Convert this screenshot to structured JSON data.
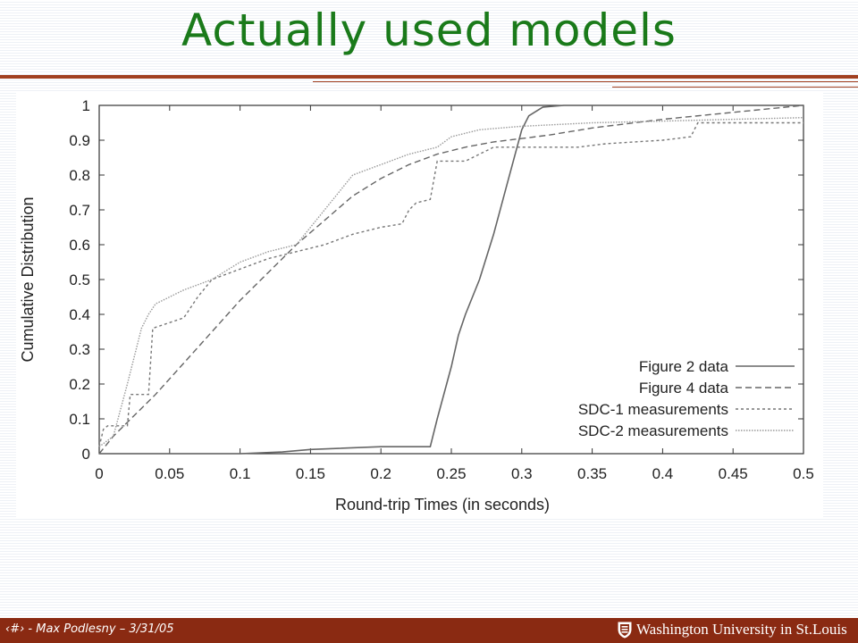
{
  "slide": {
    "title": "Actually used models",
    "footer_left": "‹#› - Max Podlesny – 3/31/05",
    "footer_right": "Washington University in St.Louis",
    "colors": {
      "title": "#1a7a1a",
      "accent_bar": "#8a2a12",
      "rule": "#a14020"
    }
  },
  "chart_data": {
    "type": "line",
    "xlabel": "Round-trip Times (in seconds)",
    "ylabel": "Cumulative Distribution",
    "xlim": [
      0,
      0.5
    ],
    "ylim": [
      0,
      1
    ],
    "xticks": [
      "0",
      "0.05",
      "0.1",
      "0.15",
      "0.2",
      "0.25",
      "0.3",
      "0.35",
      "0.4",
      "0.45",
      "0.5"
    ],
    "yticks": [
      "0",
      "0.1",
      "0.2",
      "0.3",
      "0.4",
      "0.5",
      "0.6",
      "0.7",
      "0.8",
      "0.9",
      "1"
    ],
    "grid": false,
    "legend_position": "bottom-right",
    "series": [
      {
        "name": "Figure 2 data",
        "style": "solid",
        "color": "#666666",
        "x": [
          0,
          0.05,
          0.1,
          0.13,
          0.15,
          0.2,
          0.235,
          0.24,
          0.25,
          0.255,
          0.26,
          0.27,
          0.28,
          0.29,
          0.3,
          0.305,
          0.315,
          0.33,
          0.4,
          0.5
        ],
        "y": [
          0,
          0,
          0,
          0.005,
          0.012,
          0.02,
          0.02,
          0.1,
          0.25,
          0.34,
          0.4,
          0.5,
          0.63,
          0.78,
          0.93,
          0.97,
          0.995,
          1.0,
          1.0,
          1.0
        ]
      },
      {
        "name": "Figure 4 data",
        "style": "dashed",
        "color": "#666666",
        "x": [
          0,
          0.01,
          0.02,
          0.04,
          0.06,
          0.08,
          0.1,
          0.12,
          0.14,
          0.16,
          0.18,
          0.2,
          0.22,
          0.24,
          0.26,
          0.28,
          0.3,
          0.32,
          0.35,
          0.4,
          0.45,
          0.5
        ],
        "y": [
          0,
          0.05,
          0.09,
          0.17,
          0.26,
          0.35,
          0.44,
          0.52,
          0.6,
          0.67,
          0.74,
          0.79,
          0.83,
          0.86,
          0.88,
          0.895,
          0.905,
          0.915,
          0.935,
          0.96,
          0.98,
          1.0
        ]
      },
      {
        "name": "SDC-1 measurements",
        "style": "dotted-coarse",
        "color": "#777777",
        "x": [
          0,
          0.003,
          0.006,
          0.02,
          0.022,
          0.035,
          0.038,
          0.06,
          0.07,
          0.08,
          0.1,
          0.12,
          0.14,
          0.16,
          0.18,
          0.2,
          0.215,
          0.22,
          0.225,
          0.235,
          0.24,
          0.26,
          0.27,
          0.28,
          0.3,
          0.34,
          0.36,
          0.4,
          0.42,
          0.425,
          0.5
        ],
        "y": [
          0.02,
          0.07,
          0.08,
          0.08,
          0.17,
          0.17,
          0.36,
          0.39,
          0.45,
          0.5,
          0.53,
          0.56,
          0.58,
          0.6,
          0.63,
          0.65,
          0.66,
          0.7,
          0.72,
          0.73,
          0.84,
          0.84,
          0.86,
          0.88,
          0.88,
          0.88,
          0.89,
          0.9,
          0.91,
          0.95,
          0.95
        ]
      },
      {
        "name": "SDC-2 measurements",
        "style": "dotted-fine",
        "color": "#999999",
        "x": [
          0,
          0.01,
          0.02,
          0.03,
          0.035,
          0.04,
          0.05,
          0.06,
          0.08,
          0.1,
          0.12,
          0.14,
          0.16,
          0.18,
          0.2,
          0.22,
          0.24,
          0.25,
          0.27,
          0.3,
          0.35,
          0.4,
          0.45,
          0.5
        ],
        "y": [
          0.02,
          0.05,
          0.2,
          0.36,
          0.4,
          0.43,
          0.45,
          0.47,
          0.5,
          0.55,
          0.58,
          0.6,
          0.7,
          0.8,
          0.83,
          0.86,
          0.88,
          0.91,
          0.93,
          0.94,
          0.95,
          0.955,
          0.96,
          0.965
        ]
      }
    ]
  }
}
